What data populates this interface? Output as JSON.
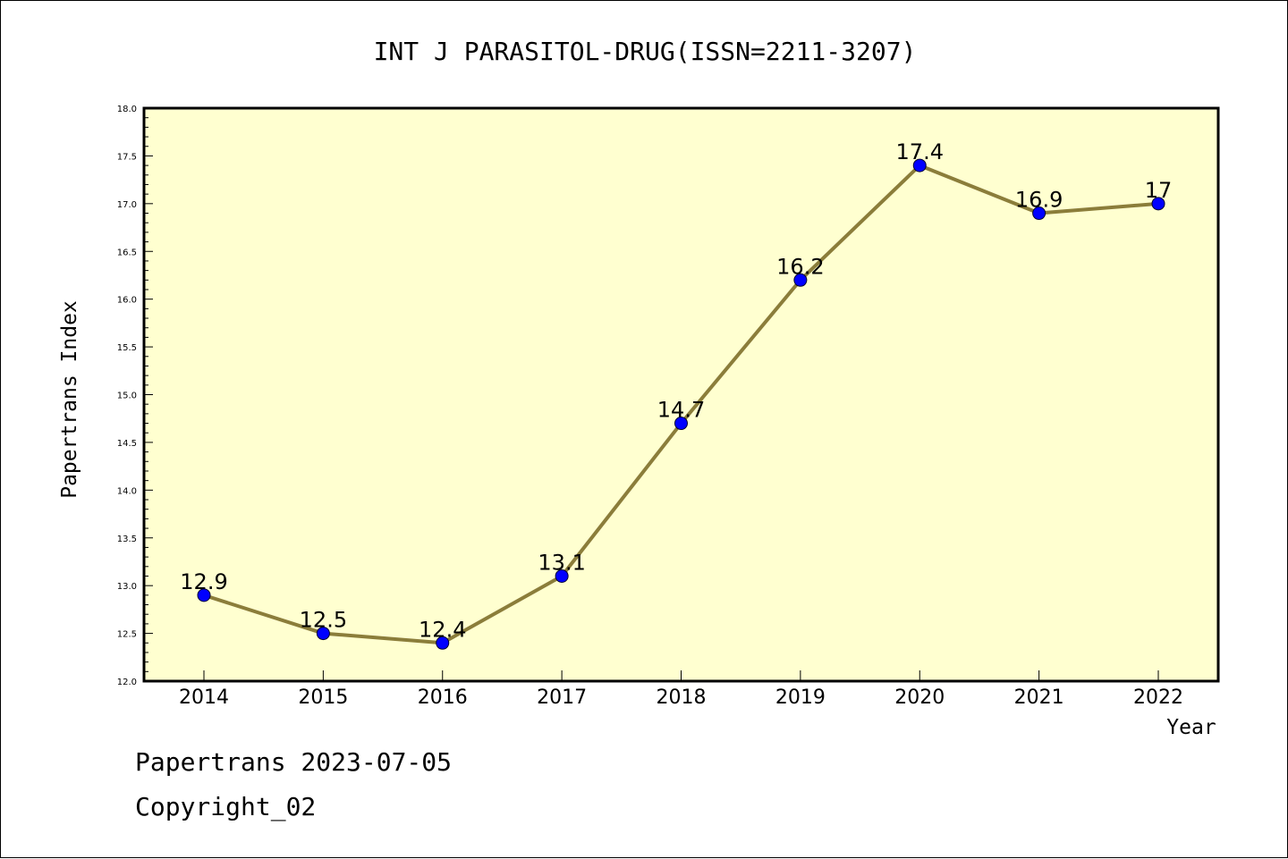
{
  "chart_data": {
    "type": "line",
    "title": "INT J PARASITOL-DRUG(ISSN=2211-3207)",
    "xlabel": "Year",
    "ylabel": "Papertrans Index",
    "categories": [
      "2014",
      "2015",
      "2016",
      "2017",
      "2018",
      "2019",
      "2020",
      "2021",
      "2022"
    ],
    "values": [
      12.9,
      12.5,
      12.4,
      13.1,
      14.7,
      16.2,
      17.4,
      16.9,
      17
    ],
    "data_labels": [
      "12.9",
      "12.5",
      "12.4",
      "13.1",
      "14.7",
      "16.2",
      "17.4",
      "16.9",
      "17"
    ],
    "ylim": [
      12.0,
      18.0
    ],
    "yticks": [
      "12.0",
      "12.5",
      "13.0",
      "13.5",
      "14.0",
      "14.5",
      "15.0",
      "15.5",
      "16.0",
      "16.5",
      "17.0",
      "17.5",
      "18.0"
    ],
    "grid": false,
    "colors": {
      "plot_background": "#FFFFD0",
      "line": "#8B7D3A",
      "marker": "#0000FF"
    }
  },
  "footer": {
    "line1": "Papertrans 2023-07-05",
    "line2": "Copyright_02"
  }
}
